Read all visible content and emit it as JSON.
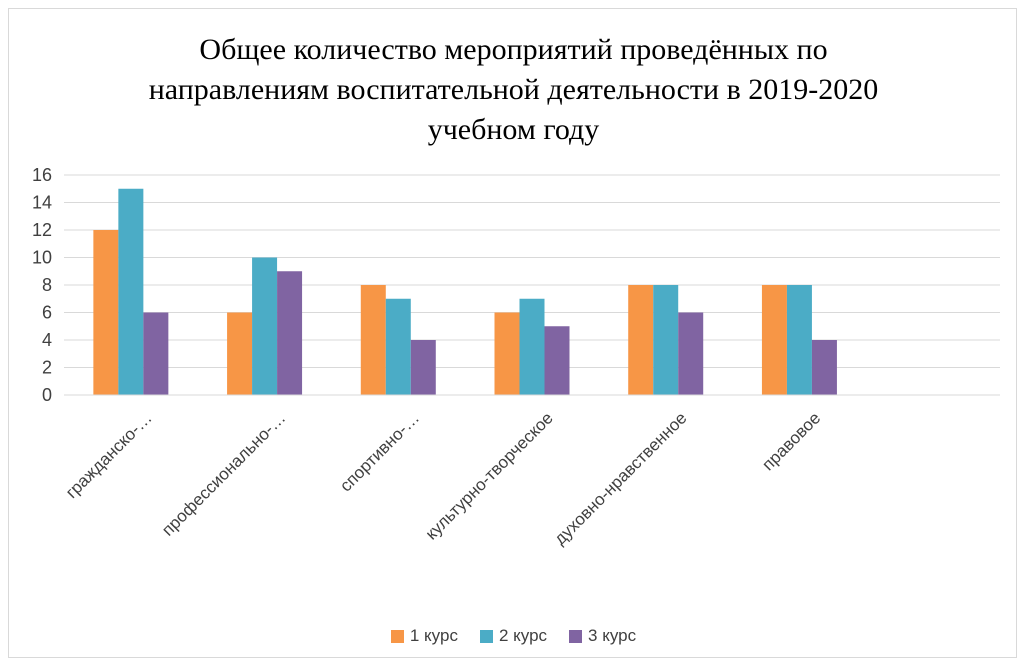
{
  "chart_data": {
    "type": "bar",
    "title_lines": [
      "Общее количество мероприятий проведённых по",
      "направлениям воспитательной деятельности в 2019-2020",
      "учебном году"
    ],
    "categories": [
      "гражданско-…",
      "профессионально-…",
      "спортивно-…",
      "культурно-творческое",
      "духовно-нравственное",
      "правовое"
    ],
    "series": [
      {
        "name": "1 курс",
        "color": "#F79646",
        "values": [
          12,
          6,
          8,
          6,
          8,
          8
        ]
      },
      {
        "name": "2 курс",
        "color": "#4BACC6",
        "values": [
          15,
          10,
          7,
          7,
          8,
          8
        ]
      },
      {
        "name": "3 курс",
        "color": "#8064A2",
        "values": [
          6,
          9,
          4,
          5,
          6,
          4
        ]
      }
    ],
    "yticks": [
      "0",
      "2",
      "4",
      "6",
      "8",
      "10",
      "12",
      "14",
      "16"
    ],
    "ylim": [
      0,
      16
    ],
    "grid": true,
    "legend": "bottom"
  }
}
